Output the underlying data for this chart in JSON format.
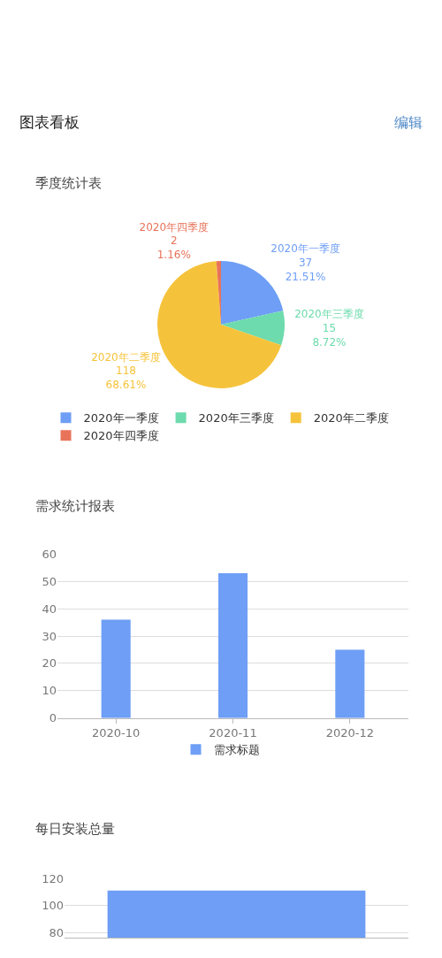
{
  "chart_data": [
    {
      "type": "pie",
      "title": "季度统计表",
      "categories": [
        "2020年一季度",
        "2020年三季度",
        "2020年二季度",
        "2020年四季度"
      ],
      "values": [
        37,
        15,
        118,
        2
      ],
      "colors": [
        "#6e9ef5",
        "#6ddbad",
        "#f5c33b",
        "#e8735a"
      ],
      "value_labels": [
        "37\n21.51%",
        "15\n8.72%",
        "118\n68.61%",
        "2\n1.16%"
      ],
      "legend": "bottom",
      "annotations": [
        "图表看板",
        "编辑"
      ]
    },
    {
      "type": "bar",
      "title": "需求统计报表",
      "categories": [
        "2020-10",
        "2020-11",
        "2020-12"
      ],
      "series": [
        {
          "name": "需求标题",
          "color": "#6e9ef5",
          "values": [
            36,
            53,
            25
          ]
        }
      ],
      "ylim": [
        0,
        60
      ],
      "yticks": [
        0,
        10,
        20,
        30,
        40,
        50,
        60
      ],
      "grid": "y",
      "legend": "bottom"
    },
    {
      "type": "bar",
      "title": "每日安装总量",
      "categories": [
        null
      ],
      "series": [
        {
          "color": "#6e9ef5",
          "values": [
            111
          ]
        }
      ],
      "ylim": [
        76,
        120
      ],
      "yticks": [
        80,
        100,
        120
      ],
      "grid": "y"
    }
  ]
}
